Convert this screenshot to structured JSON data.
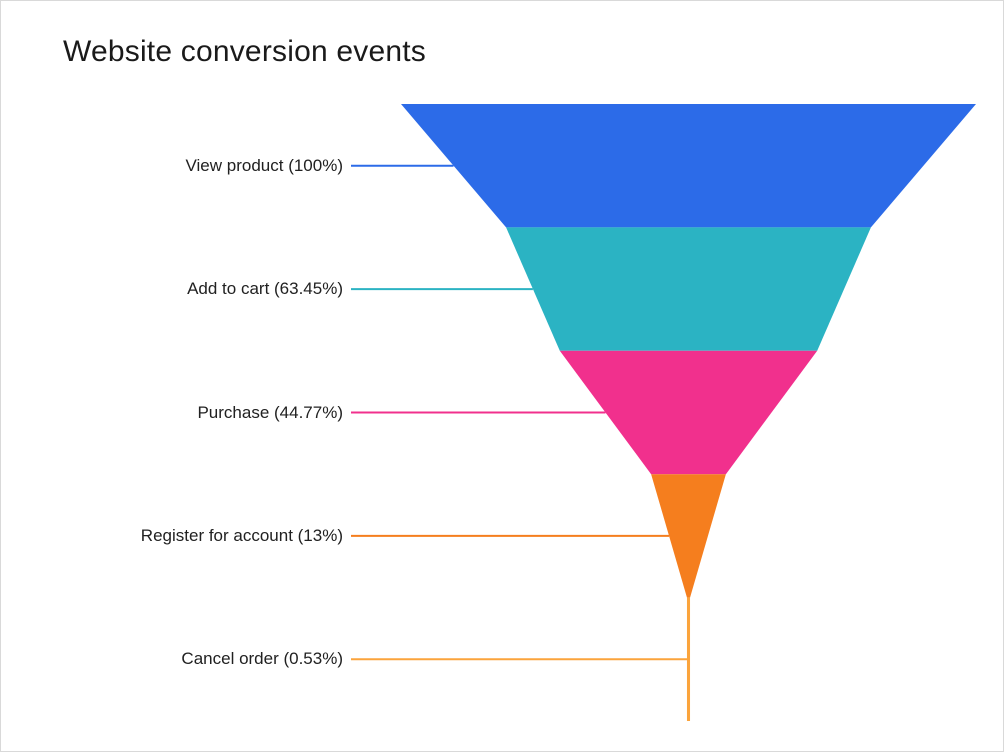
{
  "title": "Website conversion events",
  "colors": {
    "background": "#ffffff",
    "border": "#d9d9d9",
    "title_text": "#1a1a1a",
    "label_text": "#212121"
  },
  "chart_data": {
    "type": "funnel",
    "title": "Website conversion events",
    "orientation": "vertical",
    "align": "center",
    "labels_position": "left",
    "leader_lines": true,
    "legend": "none",
    "value_unit": "%",
    "stages": [
      {
        "label": "View product",
        "value_pct": 100,
        "display": "View product (100%)",
        "color": "#2c6be8"
      },
      {
        "label": "Add to cart",
        "value_pct": 63.45,
        "display": "Add to cart (63.45%)",
        "color": "#2bb3c3"
      },
      {
        "label": "Purchase",
        "value_pct": 44.77,
        "display": "Purchase (44.77%)",
        "color": "#f1308d"
      },
      {
        "label": "Register for account",
        "value_pct": 13,
        "display": "Register for account (13%)",
        "color": "#f57e1e"
      },
      {
        "label": "Cancel order",
        "value_pct": 0.53,
        "display": "Cancel order (0.53%)",
        "color": "#fba43c"
      }
    ]
  }
}
